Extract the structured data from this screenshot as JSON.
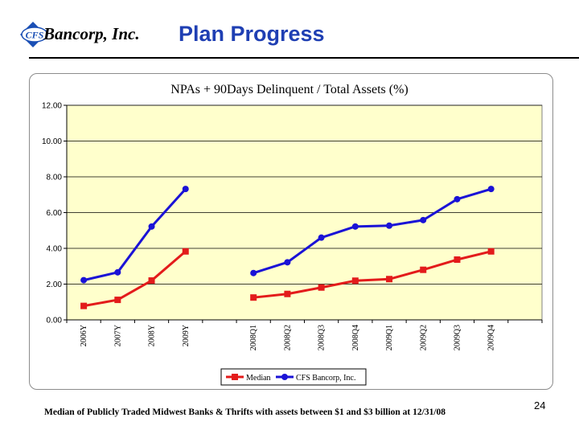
{
  "header": {
    "logo_text": "CFS",
    "company_name": "Bancorp, Inc.",
    "title": "Plan Progress"
  },
  "chart_data": {
    "type": "line",
    "title": "NPAs + 90Days Delinquent / Total Assets (%)",
    "categories": [
      "2006Y",
      "2007Y",
      "2008Y",
      "2009Y",
      "",
      "2008Q1",
      "2008Q2",
      "2008Q3",
      "2008Q4",
      "2009Q1",
      "2009Q2",
      "2009Q3",
      "2009Q4",
      ""
    ],
    "series": [
      {
        "name": "Median",
        "color": "#e31b1b",
        "marker": "square",
        "values": [
          0.78,
          1.12,
          2.2,
          3.83,
          null,
          1.25,
          1.45,
          1.81,
          2.19,
          2.28,
          2.8,
          3.37,
          3.83,
          null
        ]
      },
      {
        "name": "CFS Bancorp, Inc.",
        "color": "#1a12d6",
        "marker": "circle",
        "values": [
          2.22,
          2.66,
          5.22,
          7.32,
          null,
          2.62,
          3.22,
          4.6,
          5.22,
          5.27,
          5.58,
          6.75,
          7.32,
          null
        ]
      }
    ],
    "ylim": [
      0,
      12
    ],
    "yticks": [
      "0.00",
      "2.00",
      "4.00",
      "6.00",
      "8.00",
      "10.00",
      "12.00"
    ],
    "grid": true,
    "plot_background": "#ffffcc",
    "legend": "bottom"
  },
  "footer": {
    "page_number": "24",
    "footnote": "Median of Publicly Traded Midwest Banks & Thrifts with assets between $1 and $3 billion at 12/31/08"
  }
}
